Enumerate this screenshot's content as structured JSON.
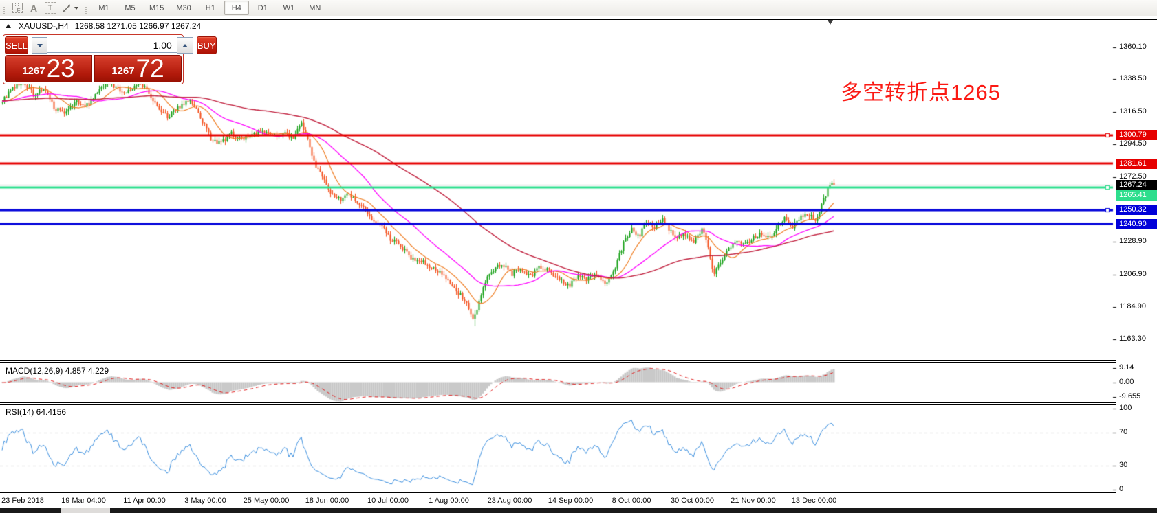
{
  "toolbar": {
    "tools": [
      {
        "name": "periodicity-grid-icon",
        "label": "F"
      },
      {
        "name": "text-label-icon",
        "label": "A"
      },
      {
        "name": "text-box-icon",
        "label": "T"
      },
      {
        "name": "arrow-objects-icon",
        "label": ""
      }
    ],
    "timeframes": [
      {
        "label": "M1",
        "active": false
      },
      {
        "label": "M5",
        "active": false
      },
      {
        "label": "M15",
        "active": false
      },
      {
        "label": "M30",
        "active": false
      },
      {
        "label": "H1",
        "active": false
      },
      {
        "label": "H4",
        "active": true
      },
      {
        "label": "D1",
        "active": false
      },
      {
        "label": "W1",
        "active": false
      },
      {
        "label": "MN",
        "active": false
      }
    ]
  },
  "chart": {
    "symbol_label": "XAUUSD-,H4",
    "ohlc_text": "1268.58 1271.05 1266.97 1267.24",
    "annotation_text": "多空转折点1265",
    "annotation_color": "#fb1a14",
    "y_ticks": [
      "1360.10",
      "1338.50",
      "1316.50",
      "1294.50",
      "1272.50",
      "1228.90",
      "1206.90",
      "1184.90",
      "1163.30"
    ],
    "x_ticks": [
      "23 Feb 2018",
      "19 Mar 04:00",
      "11 Apr 00:00",
      "3 May 00:00",
      "25 May 00:00",
      "18 Jun 00:00",
      "10 Jul 00:00",
      "1 Aug 00:00",
      "23 Aug 00:00",
      "14 Sep 00:00",
      "8 Oct 00:00",
      "30 Oct 00:00",
      "21 Nov 00:00",
      "13 Dec 00:00"
    ],
    "bid_badge": {
      "label": "1267.24",
      "price": 1267.24,
      "line_color": "#b2b2b2",
      "badge_bg": "#000000"
    }
  },
  "trade_panel": {
    "sell_label": "SELL",
    "buy_label": "BUY",
    "volume": "1.00",
    "sell_price_small": "1267",
    "sell_price_big": "23",
    "buy_price_small": "1267",
    "buy_price_big": "72"
  },
  "macd_pane": {
    "label": "MACD(12,26,9) 4.857 4.229",
    "ticks": [
      "9.14",
      "0.00",
      "-9.655"
    ]
  },
  "rsi_pane": {
    "label": "RSI(14) 64.4156",
    "ticks": [
      "100",
      "70",
      "30",
      "0"
    ]
  },
  "chart_data": {
    "type": "candlestick",
    "symbol": "XAUUSD-",
    "timeframe": "H4",
    "last_candle": {
      "open": 1268.58,
      "high": 1271.05,
      "low": 1266.97,
      "close": 1267.24
    },
    "y_axis_range": [
      1152,
      1370
    ],
    "x_range_dates": [
      "23 Feb 2018",
      "14 Dec 2018"
    ],
    "candle_up_color": "#16a016",
    "candle_down_color": "#f4511e",
    "ma_fast_color": "#ef7d22",
    "ma_mid_color": "#ff00ff",
    "ma_slow_color": "#c01e3c",
    "levels": [
      {
        "price": 1300.79,
        "label": "1300.79",
        "color": "#e60000",
        "width": 3,
        "marker": true
      },
      {
        "price": 1281.61,
        "label": "1281.61",
        "color": "#e60000",
        "width": 3,
        "marker": false
      },
      {
        "price": 1265.41,
        "label": "1265.41",
        "color": "#2dde8d",
        "width": 3,
        "marker": true
      },
      {
        "price": 1250.32,
        "label": "1250.32",
        "color": "#0000d9",
        "width": 3,
        "marker": true
      },
      {
        "price": 1240.9,
        "label": "1240.90",
        "color": "#0000d9",
        "width": 3,
        "marker": false
      }
    ],
    "indicators": [
      {
        "name": "MACD",
        "params": [
          12,
          26,
          9
        ],
        "values": [
          4.857,
          4.229
        ],
        "histogram_color": "#c7c7c7",
        "signal_color": "#e02020",
        "axis_ticks": [
          9.14,
          0.0,
          -9.655
        ]
      },
      {
        "name": "RSI",
        "params": [
          14
        ],
        "values": [
          64.4156
        ],
        "line_color": "#3a8ede",
        "axis_ticks": [
          100,
          70,
          30,
          0
        ],
        "guide_levels": [
          70,
          30
        ]
      }
    ],
    "spike_low": {
      "fraction": 0.567,
      "price": 1172
    },
    "price_path": [
      [
        0,
        1324
      ],
      [
        0.012,
        1332
      ],
      [
        0.025,
        1336
      ],
      [
        0.038,
        1328
      ],
      [
        0.05,
        1332
      ],
      [
        0.062,
        1320
      ],
      [
        0.075,
        1314
      ],
      [
        0.088,
        1324
      ],
      [
        0.1,
        1320
      ],
      [
        0.112,
        1328
      ],
      [
        0.125,
        1337
      ],
      [
        0.138,
        1333
      ],
      [
        0.15,
        1329
      ],
      [
        0.162,
        1336
      ],
      [
        0.175,
        1331
      ],
      [
        0.188,
        1318
      ],
      [
        0.2,
        1313
      ],
      [
        0.212,
        1320
      ],
      [
        0.225,
        1325
      ],
      [
        0.238,
        1313
      ],
      [
        0.25,
        1299
      ],
      [
        0.262,
        1295
      ],
      [
        0.275,
        1302
      ],
      [
        0.288,
        1298
      ],
      [
        0.3,
        1301
      ],
      [
        0.312,
        1304
      ],
      [
        0.325,
        1300
      ],
      [
        0.338,
        1303
      ],
      [
        0.35,
        1299
      ],
      [
        0.36,
        1308
      ],
      [
        0.368,
        1297
      ],
      [
        0.376,
        1281
      ],
      [
        0.386,
        1271
      ],
      [
        0.396,
        1261
      ],
      [
        0.406,
        1257
      ],
      [
        0.416,
        1263
      ],
      [
        0.426,
        1255
      ],
      [
        0.436,
        1251
      ],
      [
        0.446,
        1243
      ],
      [
        0.456,
        1239
      ],
      [
        0.466,
        1231
      ],
      [
        0.478,
        1227
      ],
      [
        0.49,
        1219
      ],
      [
        0.505,
        1215
      ],
      [
        0.52,
        1211
      ],
      [
        0.535,
        1203
      ],
      [
        0.548,
        1195
      ],
      [
        0.558,
        1187
      ],
      [
        0.567,
        1176
      ],
      [
        0.574,
        1190
      ],
      [
        0.582,
        1205
      ],
      [
        0.592,
        1211
      ],
      [
        0.602,
        1214
      ],
      [
        0.612,
        1207
      ],
      [
        0.622,
        1211
      ],
      [
        0.634,
        1205
      ],
      [
        0.646,
        1213
      ],
      [
        0.658,
        1209
      ],
      [
        0.67,
        1203
      ],
      [
        0.681,
        1199
      ],
      [
        0.692,
        1205
      ],
      [
        0.703,
        1203
      ],
      [
        0.714,
        1207
      ],
      [
        0.726,
        1201
      ],
      [
        0.738,
        1213
      ],
      [
        0.748,
        1230
      ],
      [
        0.757,
        1237
      ],
      [
        0.766,
        1233
      ],
      [
        0.775,
        1243
      ],
      [
        0.784,
        1239
      ],
      [
        0.793,
        1245
      ],
      [
        0.802,
        1237
      ],
      [
        0.811,
        1231
      ],
      [
        0.82,
        1235
      ],
      [
        0.831,
        1229
      ],
      [
        0.843,
        1238
      ],
      [
        0.855,
        1207
      ],
      [
        0.863,
        1214
      ],
      [
        0.872,
        1224
      ],
      [
        0.882,
        1229
      ],
      [
        0.892,
        1226
      ],
      [
        0.902,
        1231
      ],
      [
        0.912,
        1235
      ],
      [
        0.922,
        1231
      ],
      [
        0.932,
        1239
      ],
      [
        0.941,
        1245
      ],
      [
        0.949,
        1239
      ],
      [
        0.957,
        1243
      ],
      [
        0.965,
        1249
      ],
      [
        0.972,
        1246
      ],
      [
        0.978,
        1241
      ],
      [
        0.984,
        1252
      ],
      [
        0.99,
        1260
      ],
      [
        0.995,
        1268
      ],
      [
        1,
        1267.3
      ]
    ]
  }
}
